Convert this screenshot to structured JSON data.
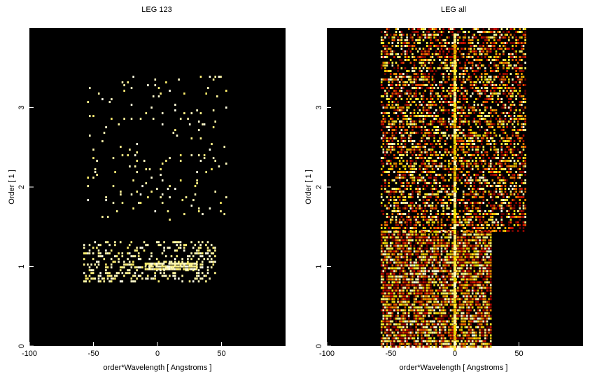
{
  "chart_data": [
    {
      "type": "heatmap",
      "title": "LEG 123",
      "xlabel": "order*Wavelength [ Angstroms ]",
      "ylabel": "Order [ 1 ]",
      "xlim": [
        -100,
        100
      ],
      "ylim": [
        0,
        4
      ],
      "xticks": [
        -100,
        -50,
        0,
        50
      ],
      "yticks": [
        0,
        1,
        2,
        3
      ],
      "colormap": "black-red-yellow-white",
      "regions": [
        {
          "x": [
            -58,
            45
          ],
          "y": [
            0.82,
            1.32
          ],
          "density": 0.3
        },
        {
          "x": [
            -10,
            30
          ],
          "y": [
            0.95,
            1.05
          ],
          "density": 0.9
        },
        {
          "x": [
            -55,
            55
          ],
          "y": [
            1.6,
            3.4
          ],
          "density": 0.04
        }
      ]
    },
    {
      "type": "heatmap",
      "title": "LEG all",
      "xlabel": "order*Wavelength [ Angstroms ]",
      "ylabel": "Order [ 1 ]",
      "xlim": [
        -100,
        100
      ],
      "ylim": [
        0,
        4
      ],
      "xticks": [
        -100,
        -50,
        0,
        50
      ],
      "yticks": [
        0,
        1,
        2,
        3
      ],
      "colormap": "black-red-yellow-white",
      "regions": [
        {
          "x": [
            -58,
            55
          ],
          "y": [
            1.45,
            4.0
          ],
          "density": 0.55
        },
        {
          "x": [
            -58,
            28
          ],
          "y": [
            0,
            1.45
          ],
          "density": 0.8
        }
      ]
    }
  ]
}
